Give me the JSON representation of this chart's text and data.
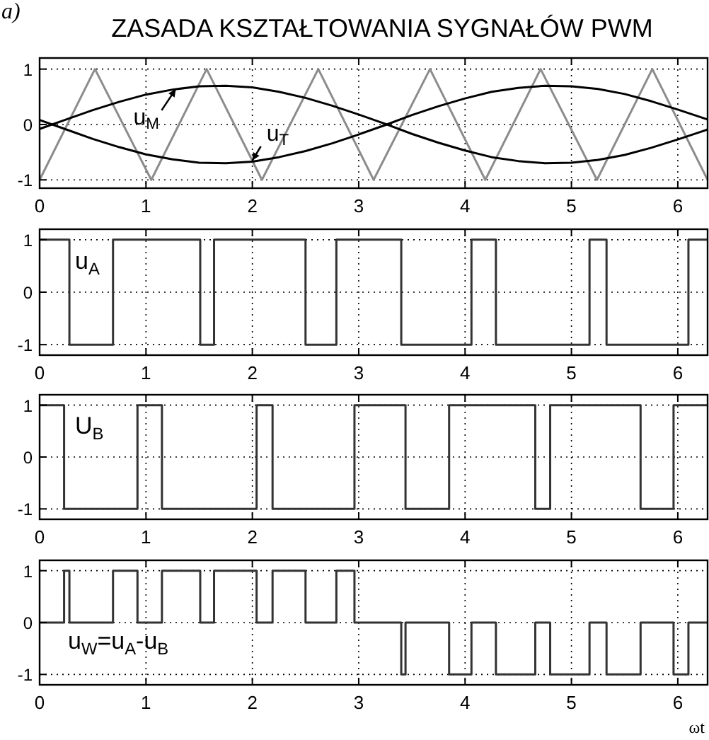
{
  "chart_data": [
    {
      "type": "line",
      "title": "ZASADA KSZTAŁTOWANIA SYGNAŁÓW PWM",
      "annotations": [
        "a)",
        {
          "text": "u$_{M}$",
          "x": 1.28,
          "y": 0.64
        },
        {
          "text": "u$_{T}$",
          "x": 2.0,
          "y": -0.65
        }
      ],
      "xlim": [
        0,
        6.28
      ],
      "ylim": [
        -1.15,
        1.2
      ],
      "xticks": [
        0,
        1,
        2,
        3,
        4,
        5,
        6
      ],
      "yticks": [
        -1,
        0,
        1
      ],
      "grid": true,
      "series": [
        {
          "color": "#8c8c8c",
          "x": [
            0,
            0.52,
            1.05,
            1.57,
            2.09,
            2.62,
            3.14,
            3.67,
            4.19,
            4.71,
            5.24,
            5.76,
            6.28
          ],
          "values": [
            -1,
            1,
            -1,
            1,
            -1,
            1,
            -1,
            1,
            -1,
            1,
            -1,
            1,
            -1
          ]
        },
        {
          "color": "#000000",
          "x": [
            0,
            0.25,
            0.5,
            0.75,
            1,
            1.25,
            1.5,
            1.75,
            2,
            2.25,
            2.5,
            2.75,
            3,
            3.25,
            3.5,
            3.75,
            4,
            4.25,
            4.5,
            4.75,
            5,
            5.25,
            5.5,
            5.75,
            6,
            6.25,
            6.28
          ],
          "values": [
            -0.08,
            0.09,
            0.26,
            0.41,
            0.54,
            0.63,
            0.69,
            0.7,
            0.67,
            0.59,
            0.48,
            0.34,
            0.18,
            0.01,
            -0.17,
            -0.33,
            -0.47,
            -0.59,
            -0.66,
            -0.7,
            -0.69,
            -0.64,
            -0.55,
            -0.42,
            -0.27,
            -0.11,
            -0.09
          ]
        },
        {
          "color": "#000000",
          "x": [
            0,
            0.25,
            0.5,
            0.75,
            1,
            1.25,
            1.5,
            1.75,
            2,
            2.25,
            2.5,
            2.75,
            3,
            3.25,
            3.5,
            3.75,
            4,
            4.25,
            4.5,
            4.75,
            5,
            5.25,
            5.5,
            5.75,
            6,
            6.25,
            6.28
          ],
          "values": [
            0.08,
            -0.09,
            -0.26,
            -0.41,
            -0.54,
            -0.63,
            -0.69,
            -0.7,
            -0.67,
            -0.59,
            -0.48,
            -0.34,
            -0.18,
            -0.01,
            0.17,
            0.33,
            0.47,
            0.59,
            0.66,
            0.7,
            0.69,
            0.64,
            0.55,
            0.42,
            0.27,
            0.11,
            0.09
          ]
        }
      ]
    },
    {
      "type": "step",
      "annotations": [
        "u$_{A}$"
      ],
      "xlim": [
        0,
        6.28
      ],
      "ylim": [
        -1.2,
        1.2
      ],
      "xticks": [
        0,
        1,
        2,
        3,
        4,
        5,
        6
      ],
      "yticks": [
        -1,
        0,
        1
      ],
      "grid": true,
      "series": [
        {
          "color": "#333333",
          "x": [
            0,
            0.28,
            0.69,
            1.51,
            1.64,
            2.5,
            2.79,
            3.4,
            4.06,
            4.29,
            5.17,
            5.33,
            6.1,
            6.28
          ],
          "values": [
            1,
            -1,
            1,
            -1,
            1,
            -1,
            1,
            -1,
            1,
            -1,
            1,
            -1,
            1,
            1
          ]
        }
      ]
    },
    {
      "type": "step",
      "annotations": [
        "U$_{B}$"
      ],
      "xlim": [
        0,
        6.28
      ],
      "ylim": [
        -1.2,
        1.2
      ],
      "xticks": [
        0,
        1,
        2,
        3,
        4,
        5,
        6
      ],
      "yticks": [
        -1,
        0,
        1
      ],
      "grid": true,
      "series": [
        {
          "color": "#333333",
          "x": [
            0,
            0.23,
            0.92,
            1.15,
            2.04,
            2.19,
            2.96,
            3.44,
            3.85,
            4.66,
            4.8,
            5.65,
            5.96,
            6.28
          ],
          "values": [
            1,
            -1,
            1,
            -1,
            1,
            -1,
            1,
            -1,
            1,
            -1,
            1,
            -1,
            1,
            1
          ]
        }
      ]
    },
    {
      "type": "step",
      "xlabel": "ωt",
      "annotations": [
        "u$_{W}$=u$_{A}$-u$_{B}$"
      ],
      "xlim": [
        0,
        6.28
      ],
      "ylim": [
        -1.2,
        1.2
      ],
      "xticks": [
        0,
        1,
        2,
        3,
        4,
        5,
        6
      ],
      "yticks": [
        -1,
        0,
        1
      ],
      "grid": true,
      "series": [
        {
          "color": "#333333",
          "x": [
            0,
            0.23,
            0.28,
            0.69,
            0.92,
            1.15,
            1.51,
            1.64,
            2.04,
            2.19,
            2.5,
            2.79,
            2.96,
            3.4,
            3.44,
            3.85,
            4.06,
            4.29,
            4.66,
            4.8,
            5.17,
            5.33,
            5.65,
            5.96,
            6.1,
            6.28
          ],
          "values": [
            0,
            1,
            0,
            1,
            0,
            1,
            0,
            1,
            0,
            1,
            0,
            1,
            0,
            -1,
            0,
            -1,
            0,
            -1,
            0,
            -1,
            0,
            -1,
            0,
            -1,
            0,
            0
          ]
        }
      ]
    }
  ]
}
